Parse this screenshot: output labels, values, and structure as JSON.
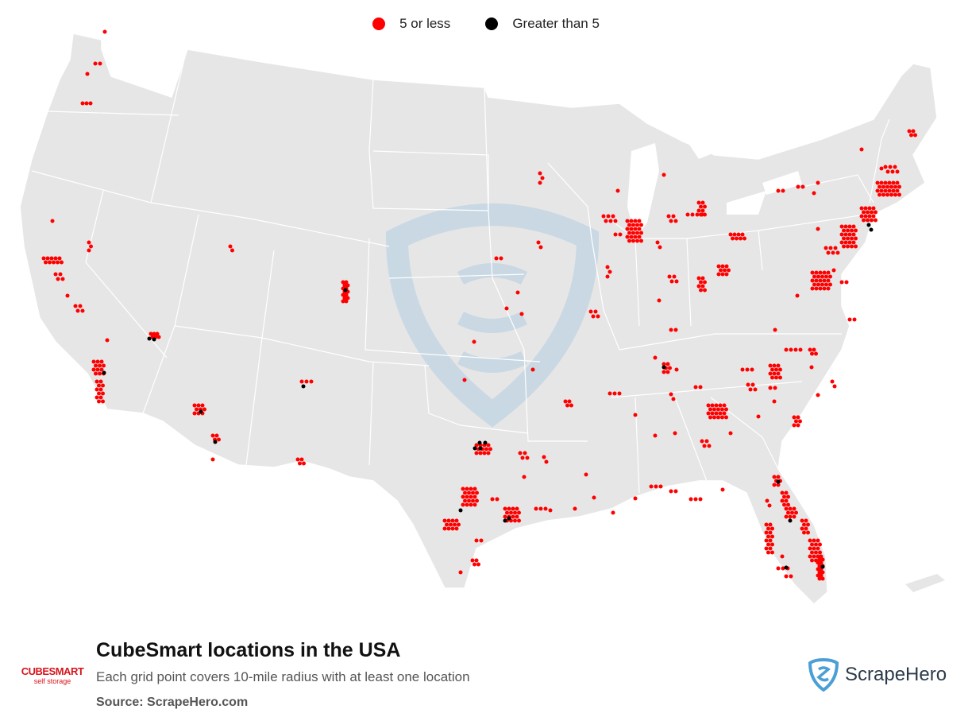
{
  "legend": {
    "small_label": "5 or less",
    "large_label": "Greater than 5",
    "small_color": "#ff0000",
    "large_color": "#000000"
  },
  "title": "CubeSmart locations in the USA",
  "subtitle": "Each grid point covers 10-mile radius with at least one location",
  "source": "Source: ScrapeHero.com",
  "brand": {
    "logo_text": "CUBESMART",
    "logo_tagline": "self storage",
    "color": "#d7141c"
  },
  "watermark": {
    "logo_text": "ScrapeHero",
    "color": "#4a9fd6"
  },
  "map": {
    "land_color": "#e6e6e6",
    "border_color": "#ffffff"
  }
}
